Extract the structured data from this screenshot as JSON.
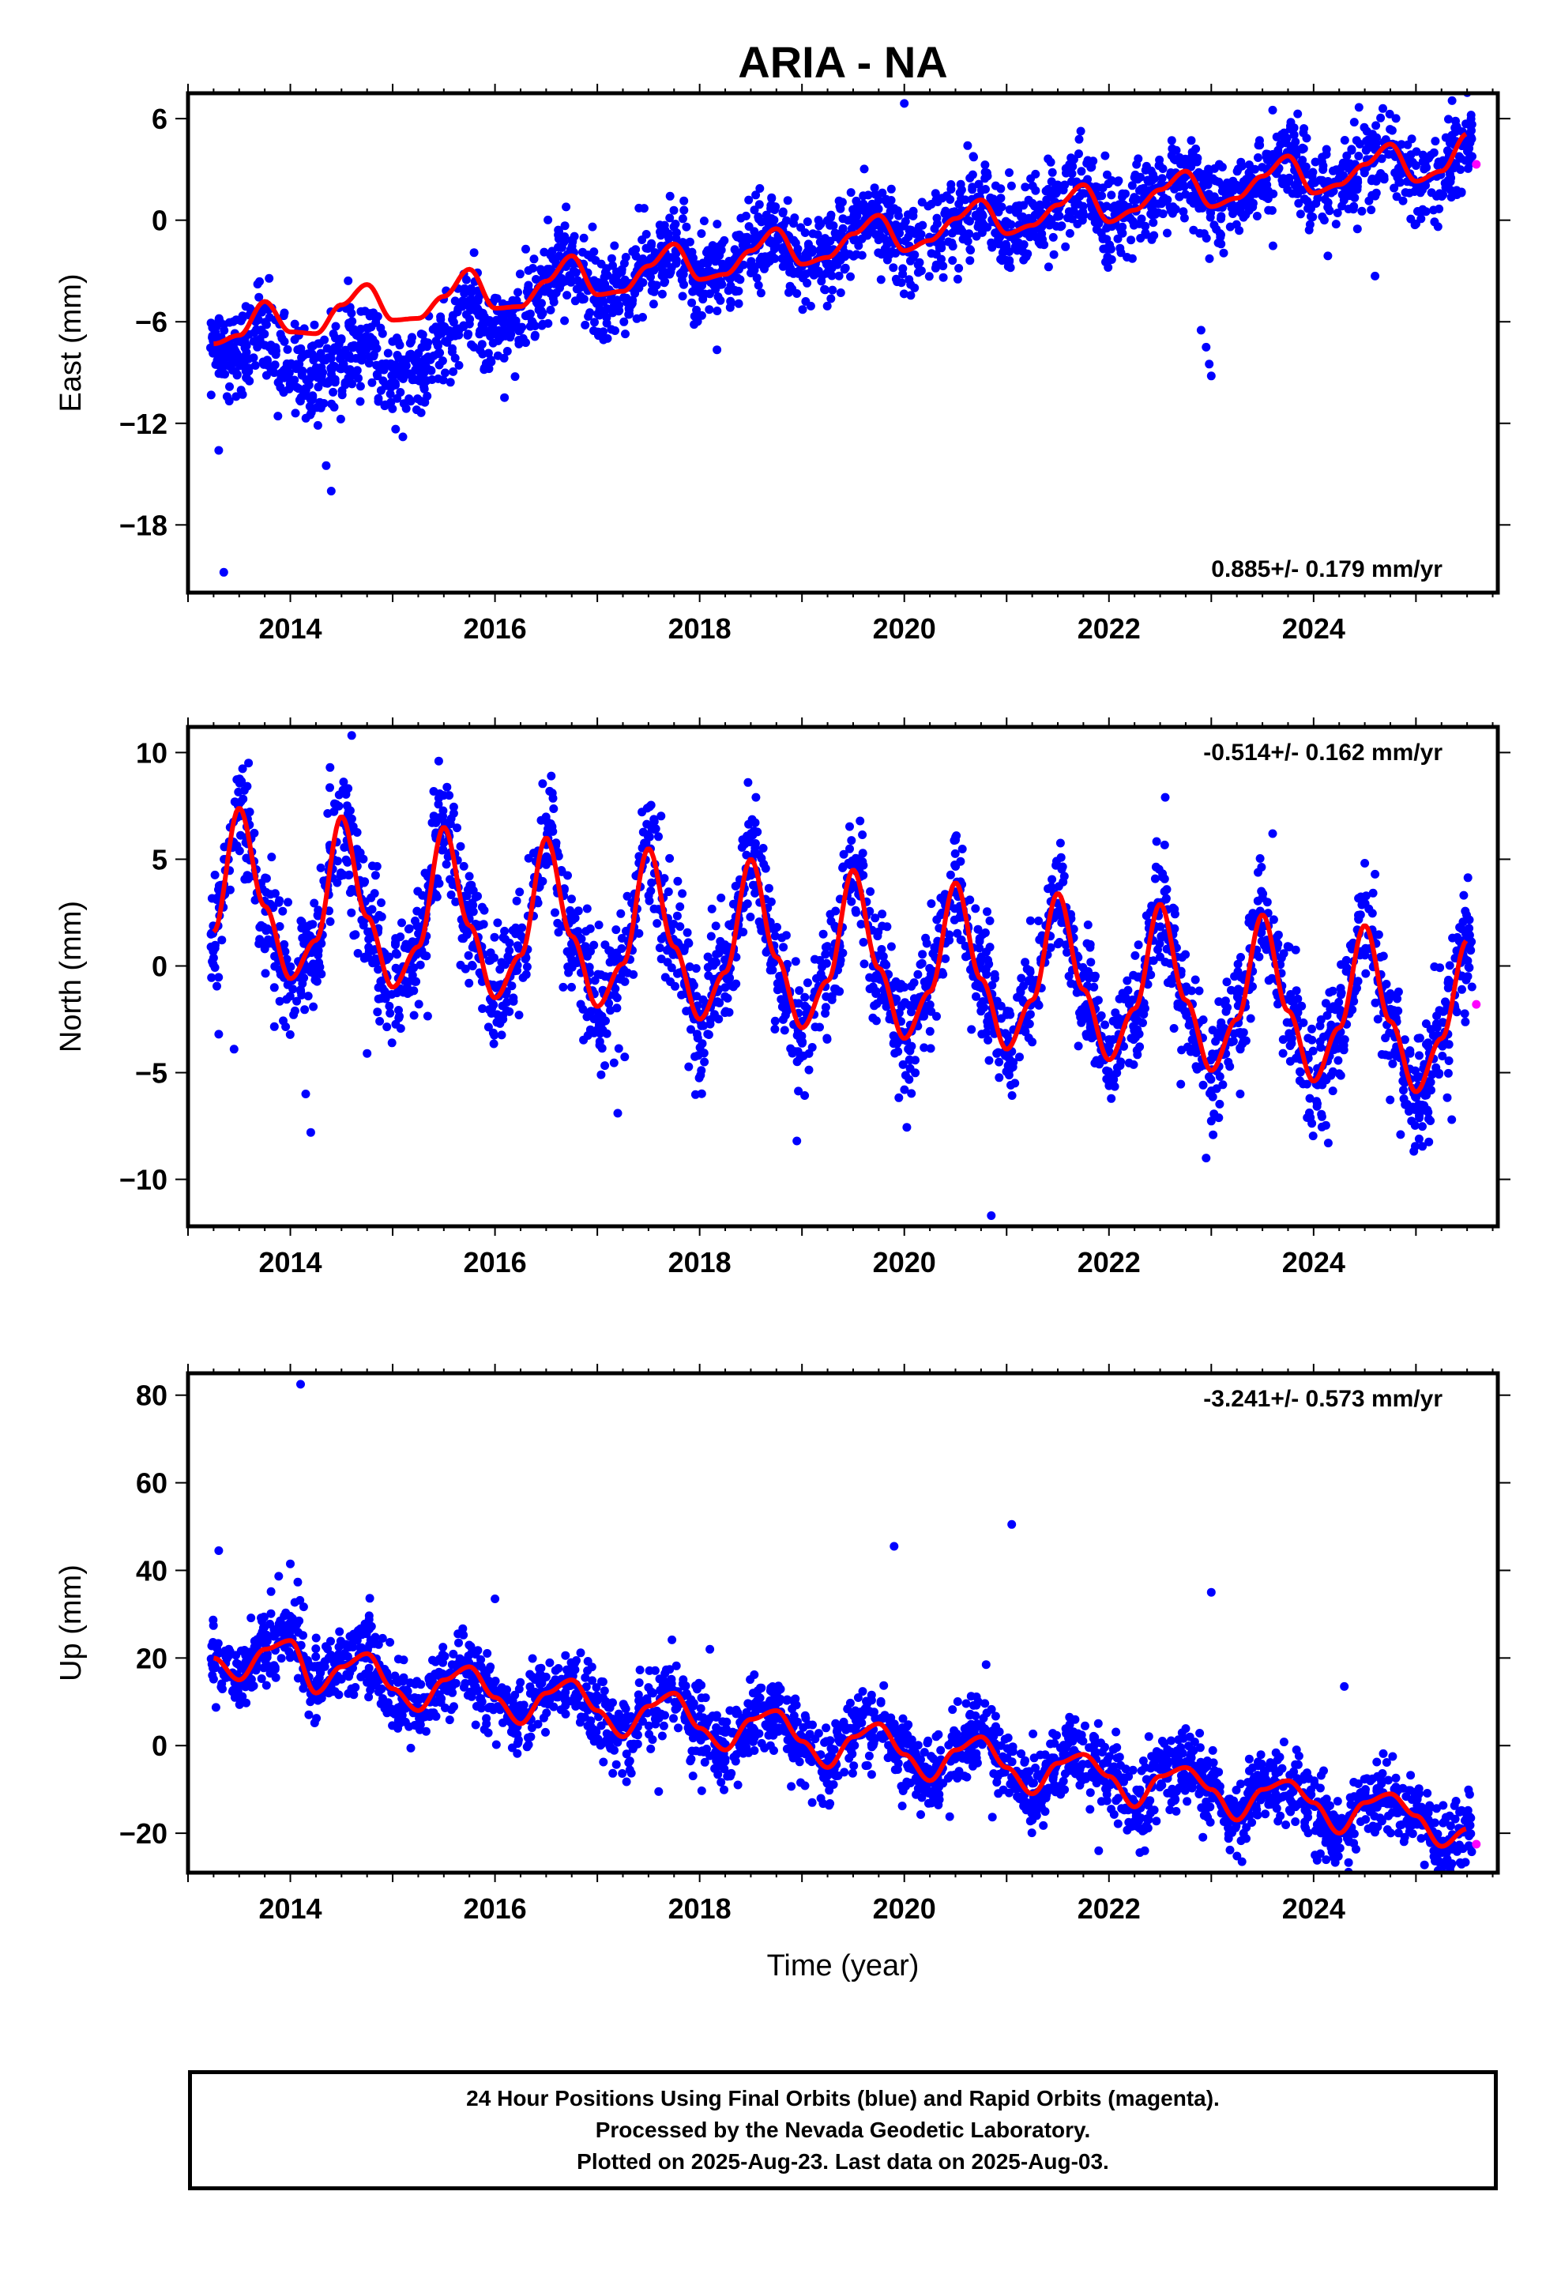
{
  "title": "ARIA - NA",
  "colors": {
    "final": "#0000ff",
    "rapid": "#ff00ff",
    "model": "#ff0000",
    "frame": "#000000"
  },
  "chart_data": [
    {
      "type": "scatter",
      "name": "east",
      "ylabel": "East (mm)",
      "xlim": [
        2013.0,
        2025.8
      ],
      "ylim": [
        -22.0,
        7.5
      ],
      "yticks": [
        6,
        0,
        -6,
        -12,
        -18
      ],
      "ytick_labels": [
        "6",
        "0",
        "−6",
        "−12",
        "−18"
      ],
      "xticks": [
        2014,
        2016,
        2018,
        2020,
        2022,
        2024
      ],
      "xtick_labels": [
        "2014",
        "2016",
        "2018",
        "2020",
        "2022",
        "2024"
      ],
      "rate_label": "0.885+/- 0.179 mm/yr",
      "rate_position": "bottom-right",
      "model_line": {
        "x": [
          2013.25,
          2013.5,
          2013.75,
          2014.0,
          2014.25,
          2014.5,
          2014.75,
          2015.0,
          2015.25,
          2015.5,
          2015.75,
          2016.0,
          2016.25,
          2016.5,
          2016.75,
          2017.0,
          2017.25,
          2017.5,
          2017.75,
          2018.0,
          2018.25,
          2018.5,
          2018.75,
          2019.0,
          2019.25,
          2019.5,
          2019.75,
          2020.0,
          2020.25,
          2020.5,
          2020.75,
          2021.0,
          2021.25,
          2021.5,
          2021.75,
          2022.0,
          2022.25,
          2022.5,
          2022.75,
          2023.0,
          2023.25,
          2023.5,
          2023.75,
          2024.0,
          2024.25,
          2024.5,
          2024.75,
          2025.0,
          2025.25,
          2025.5
        ],
        "y": [
          -7.3,
          -6.8,
          -4.8,
          -6.6,
          -6.7,
          -5.0,
          -3.8,
          -5.9,
          -5.8,
          -4.5,
          -2.9,
          -5.2,
          -5.1,
          -3.6,
          -2.1,
          -4.4,
          -4.2,
          -2.7,
          -1.4,
          -3.5,
          -3.2,
          -1.8,
          -0.5,
          -2.6,
          -2.2,
          -0.8,
          0.3,
          -1.8,
          -1.2,
          0.1,
          1.2,
          -0.8,
          -0.3,
          0.9,
          2.1,
          -0.1,
          0.6,
          1.8,
          2.9,
          0.8,
          1.3,
          2.6,
          3.8,
          1.6,
          2.1,
          3.3,
          4.5,
          2.3,
          2.9,
          5.1
        ]
      },
      "final_points": [
        [
          2013.3,
          -13.6
        ],
        [
          2013.35,
          -20.8
        ],
        [
          2013.6,
          -9.5
        ],
        [
          2014.05,
          -11.4
        ],
        [
          2014.35,
          -14.5
        ],
        [
          2014.4,
          -16.0
        ],
        [
          2015.1,
          -12.8
        ],
        [
          2016.0,
          -4.6
        ],
        [
          2017.0,
          -6.6
        ],
        [
          2018.0,
          -3.5
        ],
        [
          2019.1,
          -1.9
        ],
        [
          2019.9,
          0.7
        ],
        [
          2020.0,
          6.9
        ],
        [
          2020.1,
          -4.0
        ],
        [
          2022.9,
          -6.5
        ],
        [
          2022.95,
          -7.5
        ],
        [
          2022.98,
          -8.5
        ],
        [
          2023.0,
          -9.2
        ],
        [
          2023.6,
          6.5
        ],
        [
          2024.6,
          -3.3
        ],
        [
          2025.0,
          2.1
        ],
        [
          2025.4,
          1.5
        ]
      ],
      "rapid_points": [
        [
          2025.59,
          3.3
        ]
      ]
    },
    {
      "type": "scatter",
      "name": "north",
      "ylabel": "North (mm)",
      "xlim": [
        2013.0,
        2025.8
      ],
      "ylim": [
        -12.2,
        11.2
      ],
      "yticks": [
        10,
        5,
        0,
        -5,
        -10
      ],
      "ytick_labels": [
        "10",
        "5",
        "0",
        "−5",
        "−10"
      ],
      "xticks": [
        2014,
        2016,
        2018,
        2020,
        2022,
        2024
      ],
      "xtick_labels": [
        "2014",
        "2016",
        "2018",
        "2020",
        "2022",
        "2024"
      ],
      "rate_label": "-0.514+/- 0.162 mm/yr",
      "rate_position": "top-right",
      "model_line": {
        "x": [
          2013.25,
          2013.5,
          2013.75,
          2014.0,
          2014.25,
          2014.5,
          2014.75,
          2015.0,
          2015.25,
          2015.5,
          2015.75,
          2016.0,
          2016.25,
          2016.5,
          2016.75,
          2017.0,
          2017.25,
          2017.5,
          2017.75,
          2018.0,
          2018.25,
          2018.5,
          2018.75,
          2019.0,
          2019.25,
          2019.5,
          2019.75,
          2020.0,
          2020.25,
          2020.5,
          2020.75,
          2021.0,
          2021.25,
          2021.5,
          2021.75,
          2022.0,
          2022.25,
          2022.5,
          2022.75,
          2023.0,
          2023.25,
          2023.5,
          2023.75,
          2024.0,
          2024.25,
          2024.5,
          2024.75,
          2025.0,
          2025.25,
          2025.5
        ],
        "y": [
          1.6,
          7.4,
          2.8,
          -0.6,
          1.2,
          7.0,
          2.3,
          -1.0,
          0.9,
          6.5,
          1.9,
          -1.5,
          0.5,
          6.0,
          1.4,
          -1.9,
          0.1,
          5.5,
          0.9,
          -2.5,
          -0.3,
          5.0,
          0.4,
          -2.9,
          -0.7,
          4.5,
          -0.1,
          -3.4,
          -1.2,
          3.9,
          -0.6,
          -3.9,
          -1.6,
          3.4,
          -1.1,
          -4.4,
          -2.0,
          2.9,
          -1.6,
          -4.9,
          -2.5,
          2.4,
          -2.1,
          -5.4,
          -2.9,
          1.9,
          -2.6,
          -5.9,
          -3.4,
          1.2
        ]
      },
      "final_points": [
        [
          2013.3,
          -3.2
        ],
        [
          2013.45,
          -3.9
        ],
        [
          2014.15,
          -6.0
        ],
        [
          2014.2,
          -7.8
        ],
        [
          2014.6,
          10.8
        ],
        [
          2014.75,
          -4.1
        ],
        [
          2015.45,
          9.6
        ],
        [
          2016.55,
          8.9
        ],
        [
          2017.2,
          -6.9
        ],
        [
          2018.55,
          7.9
        ],
        [
          2018.95,
          -8.2
        ],
        [
          2020.5,
          5.9
        ],
        [
          2020.85,
          -11.7
        ],
        [
          2022.55,
          7.9
        ],
        [
          2022.95,
          -9.0
        ],
        [
          2023.6,
          6.2
        ],
        [
          2024.6,
          4.3
        ],
        [
          2024.85,
          -7.9
        ],
        [
          2025.35,
          -7.2
        ]
      ],
      "rapid_points": [
        [
          2025.59,
          -1.8
        ]
      ]
    },
    {
      "type": "scatter",
      "name": "up",
      "ylabel": "Up (mm)",
      "xlabel": "Time (year)",
      "xlim": [
        2013.0,
        2025.8
      ],
      "ylim": [
        -29.0,
        85.0
      ],
      "yticks": [
        80,
        60,
        40,
        20,
        0,
        -20
      ],
      "ytick_labels": [
        "80",
        "60",
        "40",
        "20",
        "0",
        "−20"
      ],
      "xticks": [
        2014,
        2016,
        2018,
        2020,
        2022,
        2024
      ],
      "xtick_labels": [
        "2014",
        "2016",
        "2018",
        "2020",
        "2022",
        "2024"
      ],
      "rate_label": "-3.241+/- 0.573 mm/yr",
      "rate_position": "top-right",
      "model_line": {
        "x": [
          2013.25,
          2013.5,
          2013.75,
          2014.0,
          2014.25,
          2014.5,
          2014.75,
          2015.0,
          2015.25,
          2015.5,
          2015.75,
          2016.0,
          2016.25,
          2016.5,
          2016.75,
          2017.0,
          2017.25,
          2017.5,
          2017.75,
          2018.0,
          2018.25,
          2018.5,
          2018.75,
          2019.0,
          2019.25,
          2019.5,
          2019.75,
          2020.0,
          2020.25,
          2020.5,
          2020.75,
          2021.0,
          2021.25,
          2021.5,
          2021.75,
          2022.0,
          2022.25,
          2022.5,
          2022.75,
          2023.0,
          2023.25,
          2023.5,
          2023.75,
          2024.0,
          2024.25,
          2024.5,
          2024.75,
          2025.0,
          2025.25,
          2025.5
        ],
        "y": [
          20,
          15,
          22,
          24,
          12,
          18,
          21,
          13,
          8,
          15,
          18,
          11,
          5,
          12,
          15,
          8,
          2,
          9,
          12,
          4,
          -1,
          6,
          8,
          1,
          -5,
          2,
          5,
          -2,
          -8,
          -1,
          2,
          -5,
          -11,
          -4,
          -2,
          -7,
          -14,
          -7,
          -5,
          -10,
          -17,
          -10,
          -8,
          -13,
          -20,
          -13,
          -11,
          -16,
          -23,
          -19
        ]
      },
      "final_points": [
        [
          2013.3,
          44.5
        ],
        [
          2014.1,
          82.5
        ],
        [
          2014.0,
          41.5
        ],
        [
          2015.0,
          7.5
        ],
        [
          2016.0,
          33.5
        ],
        [
          2016.35,
          2.0
        ],
        [
          2017.2,
          3.5
        ],
        [
          2017.6,
          -10.5
        ],
        [
          2018.1,
          22.0
        ],
        [
          2019.1,
          -13.0
        ],
        [
          2019.9,
          45.5
        ],
        [
          2020.8,
          18.5
        ],
        [
          2021.05,
          50.5
        ],
        [
          2021.9,
          -24.0
        ],
        [
          2022.35,
          -24.0
        ],
        [
          2023.0,
          35.0
        ],
        [
          2023.3,
          -26.5
        ],
        [
          2024.3,
          13.5
        ],
        [
          2025.3,
          -24.5
        ]
      ],
      "rapid_points": [
        [
          2025.59,
          -22.5
        ]
      ]
    }
  ],
  "footer": {
    "line1": "24 Hour Positions Using Final Orbits (blue) and Rapid Orbits (magenta).",
    "line2": "Processed by the Nevada Geodetic Laboratory.",
    "line3": "Plotted on 2025-Aug-23. Last data on 2025-Aug-03."
  }
}
